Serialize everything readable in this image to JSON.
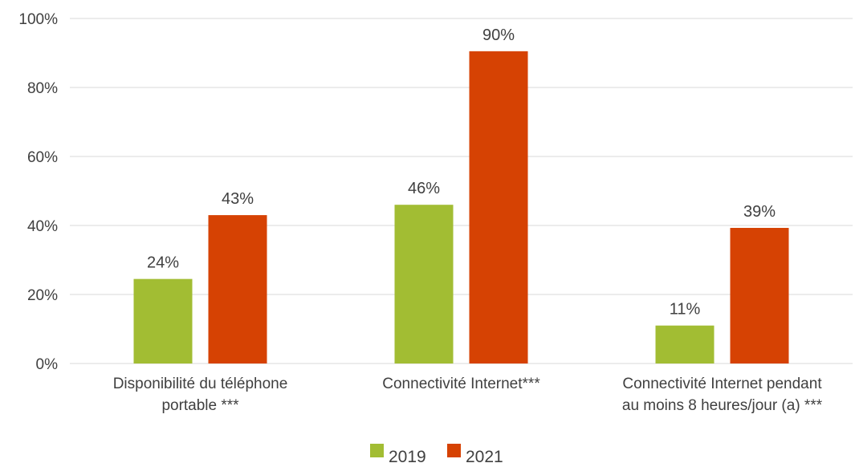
{
  "chart_data": {
    "type": "bar",
    "categories": [
      [
        "Disponibilité du téléphone",
        "portable ***"
      ],
      [
        "Connectivité Internet***"
      ],
      [
        "Connectivité Internet pendant",
        "au moins 8 heures/jour (a) ***"
      ]
    ],
    "series": [
      {
        "name": "2019",
        "values": [
          24.5,
          46,
          11
        ],
        "labels": [
          "24%",
          "46%",
          "11%"
        ],
        "color": "#a2bd33"
      },
      {
        "name": "2021",
        "values": [
          43,
          90.5,
          39.3
        ],
        "labels": [
          "43%",
          "90%",
          "39%"
        ],
        "color": "#d64203"
      }
    ],
    "yticks": [
      {
        "value": 0,
        "label": "0%"
      },
      {
        "value": 20,
        "label": "20%"
      },
      {
        "value": 40,
        "label": "40%"
      },
      {
        "value": 60,
        "label": "60%"
      },
      {
        "value": 80,
        "label": "80%"
      },
      {
        "value": 100,
        "label": "100%"
      }
    ],
    "ylim": [
      0,
      100
    ],
    "grid": true,
    "gridColor": "#d9d9d9",
    "legend_position": "bottom",
    "title": "",
    "xlabel": "",
    "ylabel": ""
  }
}
